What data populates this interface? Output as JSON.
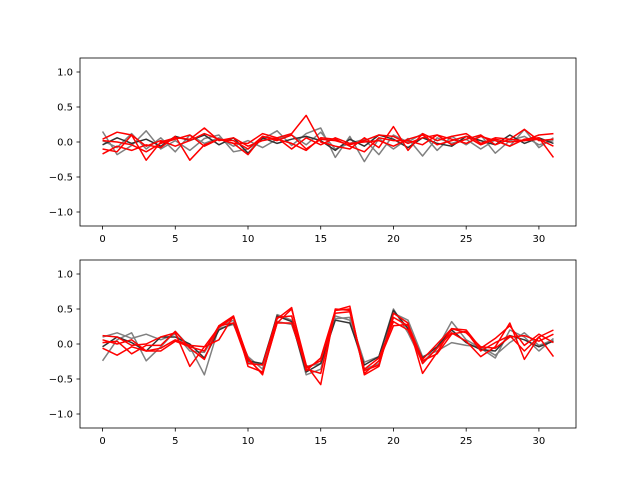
{
  "figure": {
    "background": "#ffffff"
  },
  "colors": {
    "gray": "#808080",
    "dark": "#333333",
    "red": "#ff0000",
    "axis": "#000000"
  },
  "chart_data": [
    {
      "type": "line",
      "title": "",
      "xlabel": "",
      "ylabel": "",
      "xlim": [
        -1.55,
        32.55
      ],
      "ylim": [
        -1.2,
        1.2
      ],
      "xticks": [
        0,
        5,
        10,
        15,
        20,
        25,
        30
      ],
      "xtick_labels": [
        "0",
        "5",
        "10",
        "15",
        "20",
        "25",
        "30"
      ],
      "yticks": [
        -1.0,
        -0.5,
        0.0,
        0.5,
        1.0
      ],
      "ytick_labels": [
        "−1.0",
        "−0.5",
        "0.0",
        "0.5",
        "1.0"
      ],
      "grid": false,
      "legend": "none",
      "series": [
        {
          "color": "#808080",
          "values": [
            0.15,
            -0.18,
            -0.05,
            0.16,
            -0.1,
            0.02,
            -0.12,
            0.05,
            0.1,
            -0.14,
            -0.1,
            0.04,
            0.16,
            -0.05,
            0.12,
            0.2,
            -0.22,
            0.08,
            -0.28,
            0.05,
            -0.1,
            0.05,
            -0.2,
            0.06,
            -0.02,
            0.04,
            -0.1,
            0.03,
            -0.06,
            0.18,
            -0.08,
            0.06
          ]
        },
        {
          "color": "#808080",
          "values": [
            0.02,
            -0.08,
            0.12,
            -0.1,
            0.06,
            -0.14,
            0.1,
            -0.02,
            0.06,
            -0.06,
            0.02,
            -0.08,
            0.04,
            0.1,
            -0.04,
            0.14,
            -0.1,
            -0.02,
            0.04,
            -0.18,
            0.1,
            0.0,
            0.12,
            -0.12,
            0.08,
            -0.04,
            0.1,
            -0.16,
            0.02,
            0.08,
            -0.04,
            0.02
          ]
        },
        {
          "color": "#333333",
          "values": [
            -0.04,
            0.06,
            -0.02,
            0.04,
            -0.06,
            0.08,
            0.02,
            0.1,
            -0.04,
            0.06,
            -0.16,
            0.06,
            -0.02,
            0.04,
            0.08,
            0.02,
            -0.12,
            0.04,
            -0.06,
            0.1,
            0.04,
            -0.08,
            0.06,
            -0.02,
            -0.06,
            0.08,
            0.02,
            -0.04,
            0.1,
            -0.02,
            0.06,
            -0.02
          ]
        },
        {
          "color": "#ff0000",
          "values": [
            -0.17,
            -0.06,
            -0.12,
            -0.04,
            -0.08,
            0.08,
            -0.26,
            -0.04,
            0.04,
            0.02,
            -0.1,
            0.08,
            0.04,
            -0.02,
            -0.12,
            0.06,
            0.04,
            -0.06,
            -0.14,
            0.06,
            0.02,
            0.02,
            -0.04,
            0.1,
            0.04,
            -0.02,
            0.08,
            0.02,
            -0.06,
            0.04,
            0.06,
            -0.22
          ]
        },
        {
          "color": "#ff0000",
          "values": [
            0.04,
            0.14,
            0.1,
            -0.26,
            0.0,
            0.06,
            0.04,
            0.2,
            0.02,
            0.06,
            -0.06,
            0.02,
            0.06,
            0.12,
            0.38,
            0.0,
            -0.06,
            -0.1,
            0.06,
            -0.08,
            0.22,
            -0.12,
            0.12,
            0.02,
            0.08,
            0.12,
            -0.02,
            0.06,
            0.04,
            0.02,
            0.1,
            0.12
          ]
        },
        {
          "color": "#ff0000",
          "values": [
            0.02,
            0.0,
            -0.04,
            -0.14,
            -0.02,
            0.04,
            0.1,
            -0.06,
            0.04,
            -0.02,
            -0.18,
            0.08,
            0.02,
            0.1,
            -0.1,
            0.04,
            0.02,
            -0.04,
            0.02,
            0.1,
            0.08,
            -0.02,
            0.06,
            0.1,
            -0.04,
            0.04,
            0.1,
            -0.04,
            0.04,
            0.18,
            0.02,
            0.04
          ]
        },
        {
          "color": "#ff0000",
          "values": [
            -0.1,
            -0.14,
            0.1,
            -0.06,
            0.02,
            -0.06,
            0.02,
            0.12,
            0.04,
            -0.02,
            -0.02,
            0.12,
            0.06,
            -0.1,
            0.06,
            -0.04,
            0.06,
            -0.02,
            0.0,
            0.02,
            -0.06,
            0.04,
            0.1,
            -0.04,
            0.02,
            0.08,
            -0.04,
            0.04,
            0.0,
            0.02,
            0.04,
            -0.06
          ]
        }
      ]
    },
    {
      "type": "line",
      "title": "",
      "xlabel": "",
      "ylabel": "",
      "xlim": [
        -1.55,
        32.55
      ],
      "ylim": [
        -1.2,
        1.2
      ],
      "xticks": [
        0,
        5,
        10,
        15,
        20,
        25,
        30
      ],
      "xtick_labels": [
        "0",
        "5",
        "10",
        "15",
        "20",
        "25",
        "30"
      ],
      "yticks": [
        -1.0,
        -0.5,
        0.0,
        0.5,
        1.0
      ],
      "ytick_labels": [
        "−1.0",
        "−0.5",
        "0.0",
        "0.5",
        "1.0"
      ],
      "grid": false,
      "legend": "none",
      "series": [
        {
          "color": "#808080",
          "values": [
            -0.24,
            0.06,
            0.16,
            -0.24,
            -0.04,
            0.18,
            -0.04,
            -0.44,
            0.24,
            0.34,
            -0.26,
            -0.3,
            0.32,
            0.28,
            -0.32,
            -0.28,
            0.36,
            0.38,
            -0.26,
            -0.18,
            0.5,
            0.16,
            -0.26,
            -0.06,
            0.32,
            0.06,
            -0.06,
            -0.2,
            0.2,
            0.1,
            -0.1,
            0.08
          ]
        },
        {
          "color": "#808080",
          "values": [
            0.1,
            0.16,
            0.08,
            0.14,
            0.06,
            0.14,
            -0.1,
            -0.12,
            0.22,
            0.28,
            -0.18,
            -0.36,
            0.42,
            0.34,
            -0.44,
            -0.36,
            0.4,
            0.34,
            -0.36,
            -0.28,
            0.44,
            0.34,
            -0.18,
            -0.1,
            0.02,
            -0.02,
            -0.04,
            -0.16,
            0.02,
            0.16,
            -0.02,
            0.06
          ]
        },
        {
          "color": "#333333",
          "values": [
            -0.04,
            0.1,
            0.02,
            -0.1,
            0.1,
            0.1,
            0.0,
            -0.2,
            0.2,
            0.3,
            -0.24,
            -0.28,
            0.4,
            0.32,
            -0.4,
            -0.28,
            0.34,
            0.3,
            -0.3,
            -0.18,
            0.48,
            0.22,
            -0.2,
            -0.04,
            0.2,
            0.02,
            -0.08,
            -0.1,
            0.12,
            0.06,
            -0.04,
            0.04
          ]
        },
        {
          "color": "#ff0000",
          "values": [
            0.02,
            0.04,
            -0.14,
            -0.02,
            -0.02,
            0.18,
            -0.06,
            -0.22,
            0.26,
            0.4,
            -0.22,
            -0.42,
            0.3,
            0.5,
            -0.3,
            -0.58,
            0.5,
            0.48,
            -0.42,
            -0.24,
            0.26,
            0.28,
            -0.22,
            0.0,
            0.22,
            0.2,
            -0.06,
            0.08,
            0.26,
            -0.02,
            0.14,
            0.02
          ]
        },
        {
          "color": "#ff0000",
          "values": [
            0.12,
            0.1,
            -0.02,
            0.0,
            0.1,
            0.16,
            -0.32,
            -0.04,
            0.24,
            0.38,
            -0.2,
            -0.44,
            0.36,
            0.52,
            -0.38,
            -0.2,
            0.48,
            0.54,
            -0.44,
            -0.32,
            0.44,
            0.3,
            -0.42,
            -0.12,
            0.22,
            0.16,
            -0.04,
            -0.06,
            0.1,
            0.12,
            0.04,
            0.14
          ]
        },
        {
          "color": "#ff0000",
          "values": [
            0.06,
            0.0,
            0.06,
            -0.1,
            -0.06,
            0.06,
            -0.02,
            -0.04,
            0.06,
            0.4,
            -0.32,
            -0.4,
            0.3,
            0.3,
            -0.34,
            -0.24,
            0.44,
            0.46,
            -0.36,
            -0.2,
            0.32,
            0.2,
            -0.24,
            -0.14,
            0.14,
            0.18,
            -0.1,
            0.02,
            0.12,
            -0.1,
            0.1,
            0.2
          ]
        },
        {
          "color": "#ff0000",
          "values": [
            -0.06,
            -0.16,
            -0.04,
            -0.1,
            -0.1,
            0.04,
            -0.04,
            -0.1,
            0.26,
            0.3,
            -0.28,
            -0.3,
            0.38,
            0.4,
            -0.36,
            -0.42,
            0.48,
            0.5,
            -0.38,
            -0.3,
            0.38,
            0.26,
            -0.28,
            -0.06,
            0.16,
            0.04,
            -0.18,
            -0.04,
            0.3,
            -0.22,
            0.1,
            -0.18
          ]
        }
      ]
    }
  ]
}
